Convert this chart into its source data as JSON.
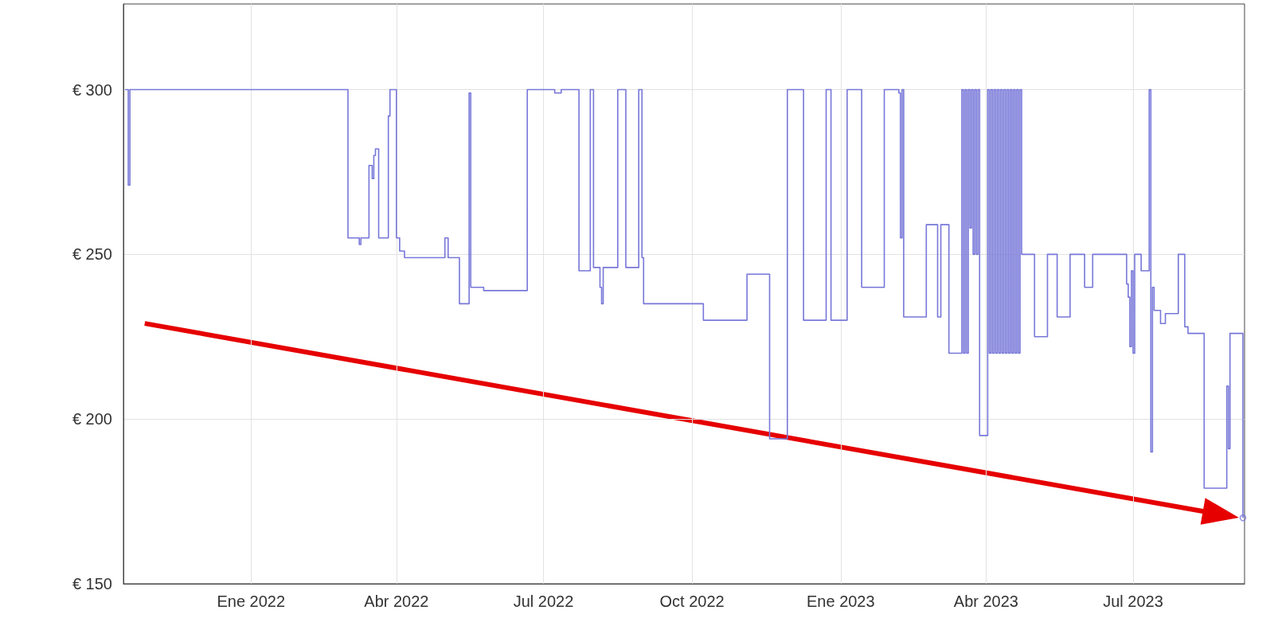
{
  "chart_data": {
    "type": "step",
    "xlim": [
      "2021-10-14",
      "2023-09-08"
    ],
    "ylim": [
      150,
      326
    ],
    "xticks": [
      {
        "value": "2022-01-01",
        "label": "Ene 2022"
      },
      {
        "value": "2022-04-01",
        "label": "Abr 2022"
      },
      {
        "value": "2022-07-01",
        "label": "Jul 2022"
      },
      {
        "value": "2022-10-01",
        "label": "Oct 2022"
      },
      {
        "value": "2023-01-01",
        "label": "Ene 2023"
      },
      {
        "value": "2023-04-01",
        "label": "Abr 2023"
      },
      {
        "value": "2023-07-01",
        "label": "Jul 2023"
      }
    ],
    "yticks": [
      {
        "value": 150,
        "label": "€ 150"
      },
      {
        "value": 200,
        "label": "€ 200"
      },
      {
        "value": 250,
        "label": "€ 250"
      },
      {
        "value": 300,
        "label": "€ 300"
      }
    ],
    "grid": true,
    "series": [
      {
        "type": "step",
        "color": "#7777d9",
        "marker": "none",
        "x": [
          "2021-10-15",
          "2021-10-17",
          "2021-10-18",
          "2022-03-02",
          "2022-03-09",
          "2022-03-10",
          "2022-03-15",
          "2022-03-17",
          "2022-03-18",
          "2022-03-19",
          "2022-03-21",
          "2022-03-27",
          "2022-03-28",
          "2022-04-01",
          "2022-04-03",
          "2022-04-06",
          "2022-05-01",
          "2022-05-03",
          "2022-05-10",
          "2022-05-16",
          "2022-05-17",
          "2022-05-25",
          "2022-06-21",
          "2022-07-08",
          "2022-07-12",
          "2022-07-23",
          "2022-07-30",
          "2022-08-01",
          "2022-08-05",
          "2022-08-06",
          "2022-08-07",
          "2022-08-16",
          "2022-08-21",
          "2022-08-29",
          "2022-08-31",
          "2022-09-01",
          "2022-10-08",
          "2022-11-04",
          "2022-11-18",
          "2022-11-29",
          "2022-12-09",
          "2022-12-23",
          "2022-12-26",
          "2023-01-05",
          "2023-01-14",
          "2023-01-28",
          "2023-02-06",
          "2023-02-07",
          "2023-02-08",
          "2023-02-09",
          "2023-02-23",
          "2023-03-02",
          "2023-03-04",
          "2023-03-09",
          "2023-03-17",
          "2023-03-18",
          "2023-03-19",
          "2023-03-20",
          "2023-03-21",
          "2023-03-22",
          "2023-03-23",
          "2023-03-24",
          "2023-03-25",
          "2023-03-26",
          "2023-03-27",
          "2023-03-28",
          "2023-04-02",
          "2023-04-03",
          "2023-04-04",
          "2023-04-05",
          "2023-04-06",
          "2023-04-07",
          "2023-04-08",
          "2023-04-09",
          "2023-04-10",
          "2023-04-11",
          "2023-04-12",
          "2023-04-13",
          "2023-04-14",
          "2023-04-15",
          "2023-04-16",
          "2023-04-17",
          "2023-04-18",
          "2023-04-19",
          "2023-04-20",
          "2023-04-21",
          "2023-04-22",
          "2023-04-23",
          "2023-05-01",
          "2023-05-09",
          "2023-05-15",
          "2023-05-23",
          "2023-06-01",
          "2023-06-06",
          "2023-06-27",
          "2023-06-28",
          "2023-06-29",
          "2023-06-30",
          "2023-07-01",
          "2023-07-02",
          "2023-07-06",
          "2023-07-11",
          "2023-07-12",
          "2023-07-13",
          "2023-07-14",
          "2023-07-18",
          "2023-07-21",
          "2023-07-29",
          "2023-08-02",
          "2023-08-04",
          "2023-08-14",
          "2023-08-28",
          "2023-08-29",
          "2023-08-30",
          "2023-09-07"
        ],
        "values": [
          300,
          271,
          300,
          255,
          253,
          255,
          277,
          273,
          280,
          282,
          255,
          292,
          300,
          255,
          251,
          249,
          255,
          249,
          235,
          299,
          240,
          239,
          300,
          299,
          300,
          245,
          300,
          246,
          240,
          235,
          246,
          300,
          246,
          300,
          249,
          235,
          230,
          244,
          194,
          300,
          230,
          300,
          230,
          300,
          240,
          300,
          299,
          255,
          300,
          231,
          259,
          231,
          259,
          220,
          300,
          220,
          300,
          220,
          300,
          258,
          300,
          250,
          300,
          250,
          300,
          195,
          300,
          220,
          300,
          220,
          300,
          220,
          300,
          220,
          300,
          220,
          300,
          220,
          300,
          220,
          300,
          220,
          300,
          220,
          300,
          220,
          300,
          250,
          225,
          250,
          231,
          250,
          240,
          250,
          241,
          237,
          222,
          245,
          220,
          250,
          245,
          300,
          190,
          240,
          233,
          229,
          232,
          250,
          228,
          226,
          179,
          210,
          191,
          226,
          170
        ]
      },
      {
        "type": "scatter",
        "color": "#7777d9",
        "marker": "circle",
        "x": [
          "2023-09-07"
        ],
        "values": [
          170
        ]
      }
    ]
  }
}
